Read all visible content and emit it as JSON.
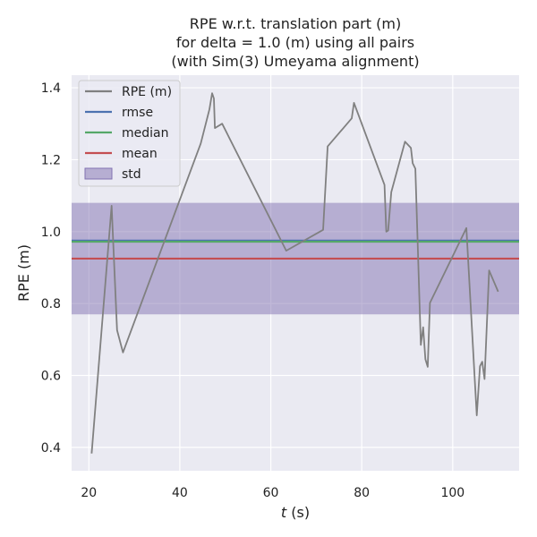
{
  "chart_data": {
    "type": "line",
    "title_lines": [
      "RPE w.r.t. translation part (m)",
      "for delta = 1.0 (m) using all pairs",
      "(with Sim(3) Umeyama alignment)"
    ],
    "xlabel_italic": "t",
    "xlabel_rest": " (s)",
    "ylabel": "RPE (m)",
    "xlim": [
      16.2,
      114.6
    ],
    "ylim": [
      0.335,
      1.435
    ],
    "x_ticks": [
      20,
      40,
      60,
      80,
      100
    ],
    "y_ticks": [
      0.4,
      0.6,
      0.8,
      1.0,
      1.2,
      1.4
    ],
    "x_tick_labels": [
      "20",
      "40",
      "60",
      "80",
      "100"
    ],
    "y_tick_labels": [
      "0.4",
      "0.6",
      "0.8",
      "1.0",
      "1.2",
      "1.4"
    ],
    "grid": true,
    "legend_position": "upper-left",
    "series": [
      {
        "name": "RPE (m)",
        "color": "#808080",
        "x": [
          20.6,
          25.0,
          26.2,
          27.5,
          44.6,
          46.5,
          47.1,
          47.5,
          47.7,
          49.3,
          63.4,
          71.5,
          72.5,
          77.8,
          78.3,
          85.0,
          85.4,
          85.8,
          86.5,
          89.5,
          90.8,
          91.2,
          91.8,
          93.0,
          93.5,
          94.0,
          94.5,
          95.0,
          103.0,
          104.9,
          105.3,
          106.0,
          106.5,
          107.0,
          108.0,
          110.0
        ],
        "y": [
          0.383,
          1.072,
          0.726,
          0.664,
          1.245,
          1.34,
          1.385,
          1.37,
          1.288,
          1.3,
          0.947,
          1.005,
          1.237,
          1.315,
          1.358,
          1.13,
          1.0,
          1.003,
          1.11,
          1.25,
          1.233,
          1.19,
          1.175,
          0.685,
          0.734,
          0.645,
          0.624,
          0.802,
          1.01,
          0.578,
          0.489,
          0.626,
          0.638,
          0.59,
          0.892,
          0.833
        ]
      }
    ],
    "stats": {
      "rmse": {
        "name": "rmse",
        "value": 0.975,
        "color": "#4c72b0"
      },
      "median": {
        "name": "median",
        "value": 0.972,
        "color": "#55a868"
      },
      "mean": {
        "name": "mean",
        "value": 0.925,
        "color": "#c44e52"
      },
      "std": {
        "name": "std",
        "lower": 0.77,
        "upper": 1.08,
        "color": "#8172b2"
      }
    },
    "colors": {
      "plot_background": "#eaeaf2",
      "grid": "#ffffff"
    }
  }
}
